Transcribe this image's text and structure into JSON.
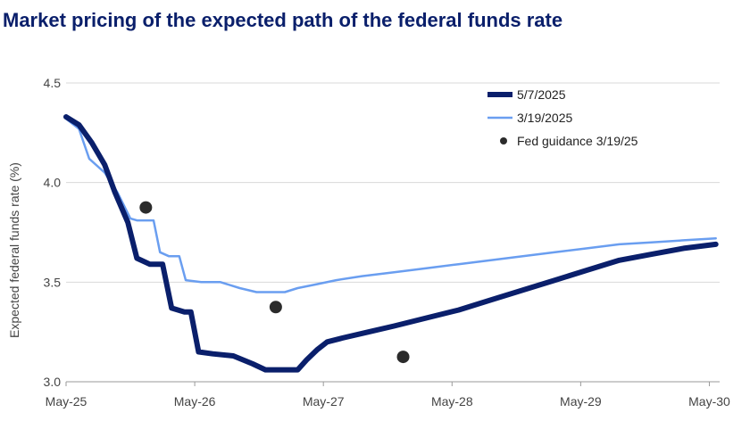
{
  "chart_data": {
    "type": "line",
    "title": "Market pricing of the expected path of the federal funds rate",
    "xlabel": "",
    "ylabel": "Expected federal funds rate (%)",
    "ylim": [
      3.0,
      4.5
    ],
    "xlim": [
      0,
      5.08
    ],
    "yticks": [
      {
        "value": 4.5,
        "label": "4.5"
      },
      {
        "value": 4.0,
        "label": "4.0"
      },
      {
        "value": 3.5,
        "label": "3.5"
      },
      {
        "value": 3.0,
        "label": "3.0"
      }
    ],
    "xticks": [
      {
        "value": 0,
        "label": "May-25"
      },
      {
        "value": 1,
        "label": "May-26"
      },
      {
        "value": 2,
        "label": "May-27"
      },
      {
        "value": 3,
        "label": "May-28"
      },
      {
        "value": 4,
        "label": "May-29"
      },
      {
        "value": 5,
        "label": "May-30"
      }
    ],
    "grid": "horizontal",
    "legend_position": "top-right",
    "series": [
      {
        "name": "5/7/2025",
        "color": "#0a1f6b",
        "style": "thick-line",
        "points": [
          [
            0,
            4.33
          ],
          [
            0.1,
            4.29
          ],
          [
            0.2,
            4.2
          ],
          [
            0.3,
            4.09
          ],
          [
            0.38,
            3.95
          ],
          [
            0.48,
            3.8
          ],
          [
            0.55,
            3.62
          ],
          [
            0.65,
            3.59
          ],
          [
            0.75,
            3.59
          ],
          [
            0.82,
            3.37
          ],
          [
            0.92,
            3.35
          ],
          [
            0.97,
            3.35
          ],
          [
            1.03,
            3.15
          ],
          [
            1.14,
            3.14
          ],
          [
            1.3,
            3.13
          ],
          [
            1.45,
            3.09
          ],
          [
            1.55,
            3.06
          ],
          [
            1.65,
            3.06
          ],
          [
            1.73,
            3.06
          ],
          [
            1.8,
            3.06
          ],
          [
            1.87,
            3.11
          ],
          [
            1.95,
            3.16
          ],
          [
            2.03,
            3.2
          ],
          [
            2.15,
            3.22
          ],
          [
            2.35,
            3.25
          ],
          [
            2.55,
            3.28
          ],
          [
            2.8,
            3.32
          ],
          [
            3.05,
            3.36
          ],
          [
            3.3,
            3.41
          ],
          [
            3.55,
            3.46
          ],
          [
            3.8,
            3.51
          ],
          [
            4.05,
            3.56
          ],
          [
            4.3,
            3.61
          ],
          [
            4.55,
            3.64
          ],
          [
            4.8,
            3.67
          ],
          [
            5.05,
            3.69
          ]
        ]
      },
      {
        "name": "3/19/2025",
        "color": "#6a9ef0",
        "style": "thin-line",
        "points": [
          [
            0,
            4.32
          ],
          [
            0.1,
            4.27
          ],
          [
            0.18,
            4.12
          ],
          [
            0.3,
            4.05
          ],
          [
            0.4,
            3.95
          ],
          [
            0.5,
            3.82
          ],
          [
            0.55,
            3.81
          ],
          [
            0.68,
            3.81
          ],
          [
            0.73,
            3.65
          ],
          [
            0.8,
            3.63
          ],
          [
            0.88,
            3.63
          ],
          [
            0.93,
            3.51
          ],
          [
            1.05,
            3.5
          ],
          [
            1.2,
            3.5
          ],
          [
            1.35,
            3.47
          ],
          [
            1.48,
            3.45
          ],
          [
            1.6,
            3.45
          ],
          [
            1.7,
            3.45
          ],
          [
            1.8,
            3.47
          ],
          [
            1.95,
            3.49
          ],
          [
            2.1,
            3.51
          ],
          [
            2.3,
            3.53
          ],
          [
            2.55,
            3.55
          ],
          [
            2.8,
            3.57
          ],
          [
            3.05,
            3.59
          ],
          [
            3.3,
            3.61
          ],
          [
            3.55,
            3.63
          ],
          [
            3.8,
            3.65
          ],
          [
            4.05,
            3.67
          ],
          [
            4.3,
            3.69
          ],
          [
            4.55,
            3.7
          ],
          [
            4.8,
            3.71
          ],
          [
            5.05,
            3.72
          ]
        ]
      }
    ],
    "scatter": {
      "name": "Fed guidance 3/19/25",
      "color": "#2b2b2b",
      "points": [
        [
          0.62,
          3.875
        ],
        [
          1.63,
          3.375
        ],
        [
          2.62,
          3.125
        ]
      ]
    }
  }
}
